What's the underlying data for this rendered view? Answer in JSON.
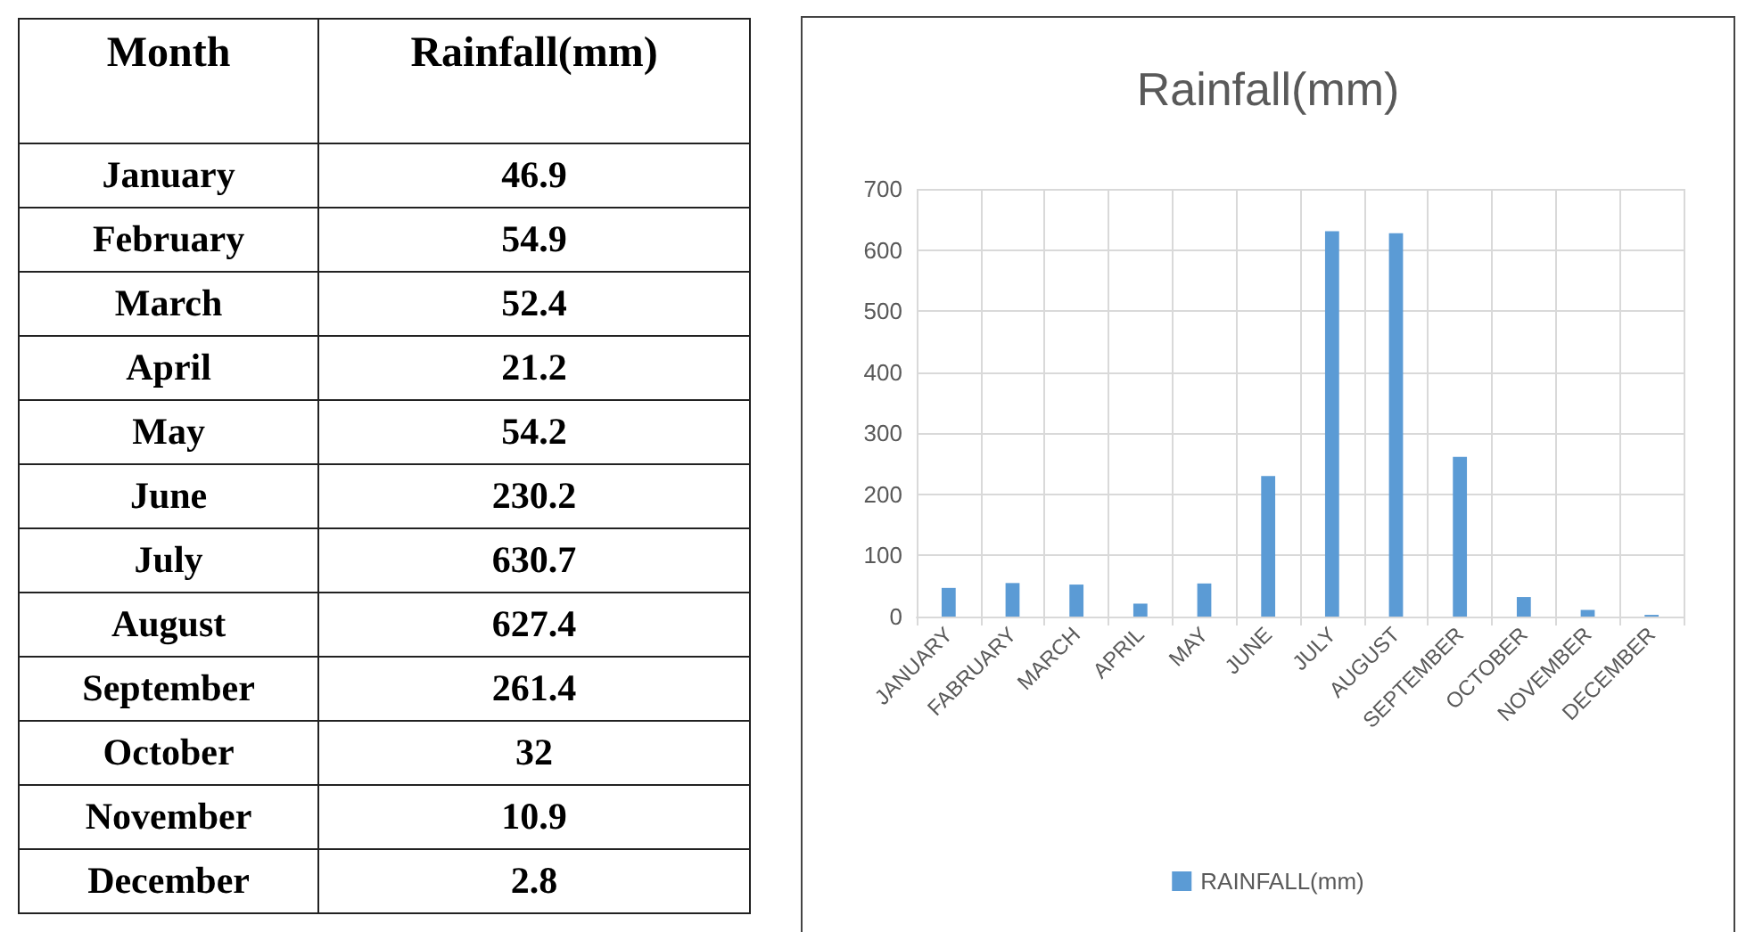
{
  "chart_data": {
    "type": "bar",
    "title": "Rainfall(mm)",
    "categories": [
      "JANUARY",
      "FABRUARY",
      "MARCH",
      "APRIL",
      "MAY",
      "JUNE",
      "JULY",
      "AUGUST",
      "SEPTEMBER",
      "OCTOBER",
      "NOVEMBER",
      "DECEMBER"
    ],
    "series": [
      {
        "name": "RAINFALL(mm)",
        "color": "#5b9bd5",
        "values": [
          46.9,
          54.9,
          52.4,
          21.2,
          54.2,
          230.2,
          630.7,
          627.4,
          261.4,
          32,
          10.9,
          2.8
        ]
      }
    ],
    "annotations": [
      "Month",
      "Rainfall(mm)",
      "January",
      "46.9",
      "February",
      "54.9",
      "March",
      "52.4",
      "April",
      "21.2",
      "May",
      "54.2",
      "June",
      "230.2",
      "July",
      "630.7",
      "August",
      "627.4",
      "September",
      "261.4",
      "October",
      "32",
      "November",
      "10.9",
      "December",
      "2.8"
    ],
    "ylim": [
      0,
      700
    ],
    "yticks": [
      0,
      100,
      200,
      300,
      400,
      500,
      600,
      700
    ],
    "grid": true,
    "legend": "bottom"
  }
}
